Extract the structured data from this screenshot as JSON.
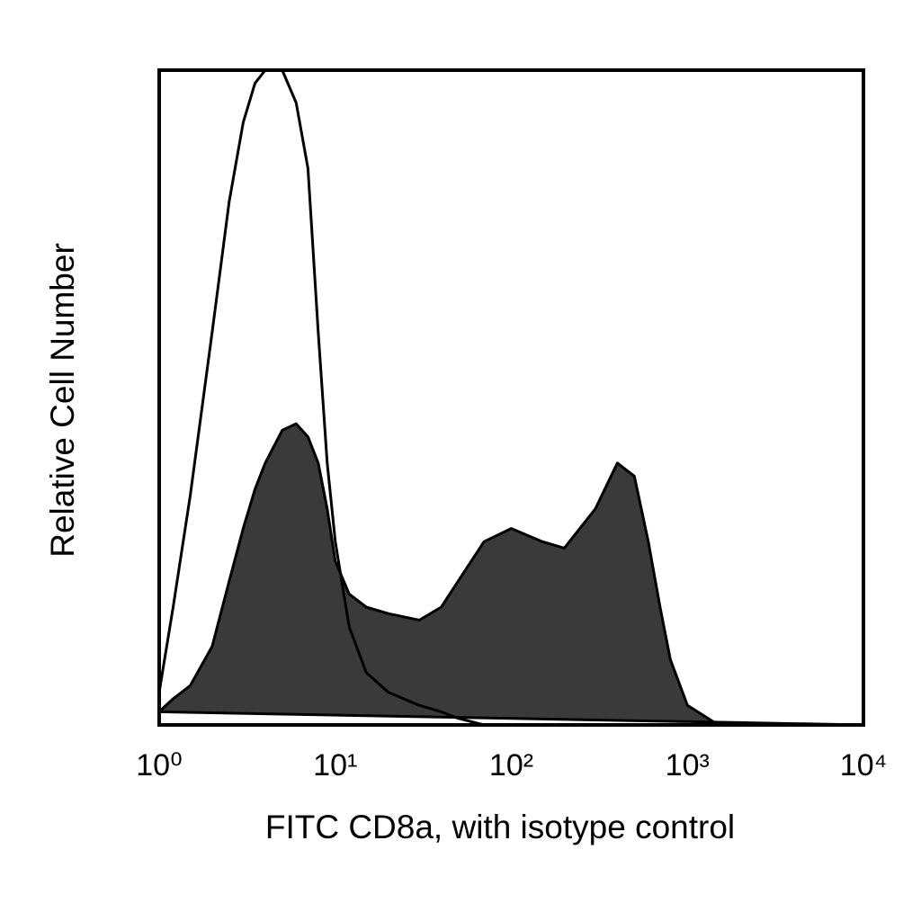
{
  "chart_data": {
    "type": "histogram",
    "x_label": "FITC CD8a, with isotype control",
    "y_label": "Relative Cell Number",
    "x_scale": "log",
    "xlim": [
      1,
      10000
    ],
    "ylim": [
      0,
      100
    ],
    "xticks": [
      {
        "value": 1,
        "label": "10⁰"
      },
      {
        "value": 10,
        "label": "10¹"
      },
      {
        "value": 100,
        "label": "10²"
      },
      {
        "value": 1000,
        "label": "10³"
      },
      {
        "value": 10000,
        "label": "10⁴"
      }
    ],
    "grid": false,
    "x": [
      1,
      1.2,
      1.5,
      2,
      2.5,
      3,
      3.5,
      4,
      5,
      6,
      7,
      8,
      9,
      10,
      12,
      15,
      20,
      30,
      40,
      50,
      70,
      100,
      150,
      200,
      300,
      400,
      500,
      600,
      700,
      800,
      1000,
      1500,
      10000
    ],
    "series": [
      {
        "color": "#000000",
        "fill": "#3a3a3a",
        "values": [
          2,
          4,
          6,
          12,
          22,
          30,
          36,
          40,
          45,
          46,
          44,
          40,
          33,
          25,
          20,
          18,
          17,
          16,
          18,
          22,
          28,
          30,
          28,
          27,
          33,
          40,
          38,
          28,
          18,
          10,
          3,
          0,
          0
        ]
      },
      {
        "color": "#000000",
        "fill": "none",
        "values": [
          5,
          18,
          35,
          60,
          80,
          92,
          98,
          100,
          100,
          95,
          85,
          60,
          40,
          28,
          15,
          8,
          5,
          3,
          2,
          1,
          0,
          0,
          0,
          0,
          0,
          0,
          0,
          0,
          0,
          0,
          0,
          0,
          0
        ]
      }
    ]
  }
}
